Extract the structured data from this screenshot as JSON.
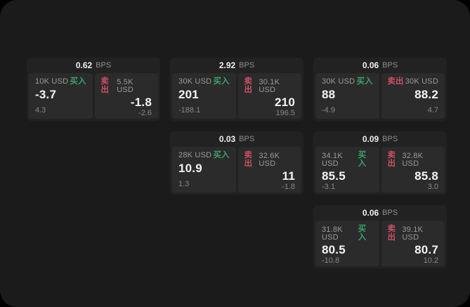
{
  "colors": {
    "backdrop": "#000000",
    "window_bg": "#1b1b1b",
    "card_bg": "#222222",
    "panel_bg": "#2b2b2b",
    "buy_green": "#3da06a",
    "sell_red": "#cb4f63",
    "primary_text": "#f4f4f4",
    "secondary_text": "#9a9a9a"
  },
  "labels": {
    "spread_unit": "BPS",
    "buy": "买入",
    "sell": "卖出"
  },
  "cards": [
    {
      "spread": "0.62",
      "spread_unit": "BPS",
      "buy": {
        "amount": "10K USD",
        "side": "买入",
        "price": "-3.7",
        "delta": "4.3"
      },
      "sell": {
        "side": "卖出",
        "amount": "5.5K USD",
        "price": "-1.8",
        "delta": "-2.6"
      }
    },
    {
      "spread": "2.92",
      "spread_unit": "BPS",
      "buy": {
        "amount": "30K USD",
        "side": "买入",
        "price": "201",
        "delta": "-188.1"
      },
      "sell": {
        "side": "卖出",
        "amount": "30.1K USD",
        "price": "210",
        "delta": "196.5"
      }
    },
    {
      "spread": "0.06",
      "spread_unit": "BPS",
      "buy": {
        "amount": "30K USD",
        "side": "买入",
        "price": "88",
        "delta": "-4.9"
      },
      "sell": {
        "side": "卖出",
        "amount": "30K USD",
        "price": "88.2",
        "delta": "4.7"
      }
    },
    {
      "spread": "0.03",
      "spread_unit": "BPS",
      "buy": {
        "amount": "28K USD",
        "side": "买入",
        "price": "10.9",
        "delta": "1.3"
      },
      "sell": {
        "side": "卖出",
        "amount": "32.6K USD",
        "price": "11",
        "delta": "-1.8"
      }
    },
    {
      "spread": "0.09",
      "spread_unit": "BPS",
      "buy": {
        "amount": "34.1K USD",
        "side": "买入",
        "price": "85.5",
        "delta": "-3.1"
      },
      "sell": {
        "side": "卖出",
        "amount": "32.8K USD",
        "price": "85.8",
        "delta": "3.0"
      }
    },
    {
      "spread": "0.06",
      "spread_unit": "BPS",
      "buy": {
        "amount": "31.8K USD",
        "side": "买入",
        "price": "80.5",
        "delta": "-10.8"
      },
      "sell": {
        "side": "卖出",
        "amount": "39.1K USD",
        "price": "80.7",
        "delta": "10.2"
      }
    }
  ]
}
